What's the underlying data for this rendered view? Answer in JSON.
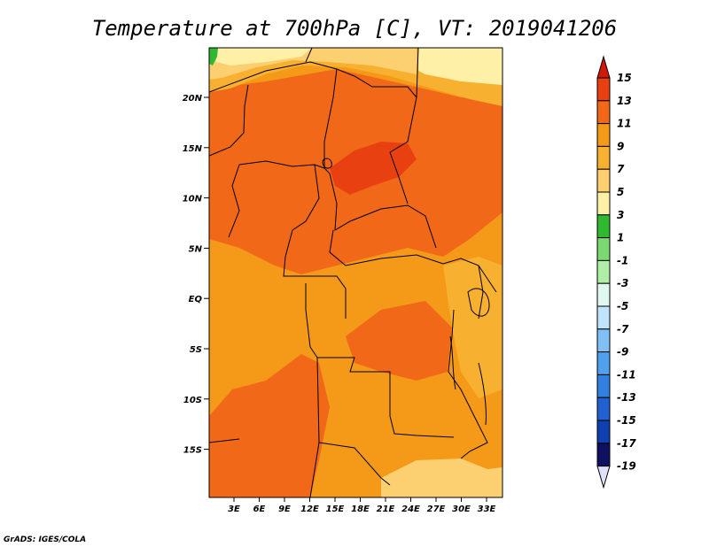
{
  "title": "Temperature at 700hPa [C], VT: 2019041206",
  "credit": "GrADS: IGES/COLA",
  "map": {
    "lat_labels": [
      "20N",
      "15N",
      "10N",
      "5N",
      "EQ",
      "5S",
      "10S",
      "15S"
    ],
    "lon_labels": [
      "3E",
      "6E",
      "9E",
      "12E",
      "15E",
      "18E",
      "21E",
      "24E",
      "27E",
      "30E",
      "33E"
    ]
  },
  "colorbar": {
    "labels": [
      "15",
      "13",
      "11",
      "9",
      "7",
      "5",
      "3",
      "1",
      "-1",
      "-3",
      "-5",
      "-7",
      "-9",
      "-11",
      "-13",
      "-15",
      "-17",
      "-19"
    ],
    "colors": [
      "#d01808",
      "#e84010",
      "#f06818",
      "#f49a18",
      "#f8b030",
      "#fcd070",
      "#fff0a8",
      "#30b830",
      "#7cd870",
      "#b0eea8",
      "#e0f8f0",
      "#c0e4fc",
      "#80c0f4",
      "#50a0ec",
      "#3480e0",
      "#2060d0",
      "#1040b0",
      "#101060",
      "#e0e0f8"
    ]
  }
}
